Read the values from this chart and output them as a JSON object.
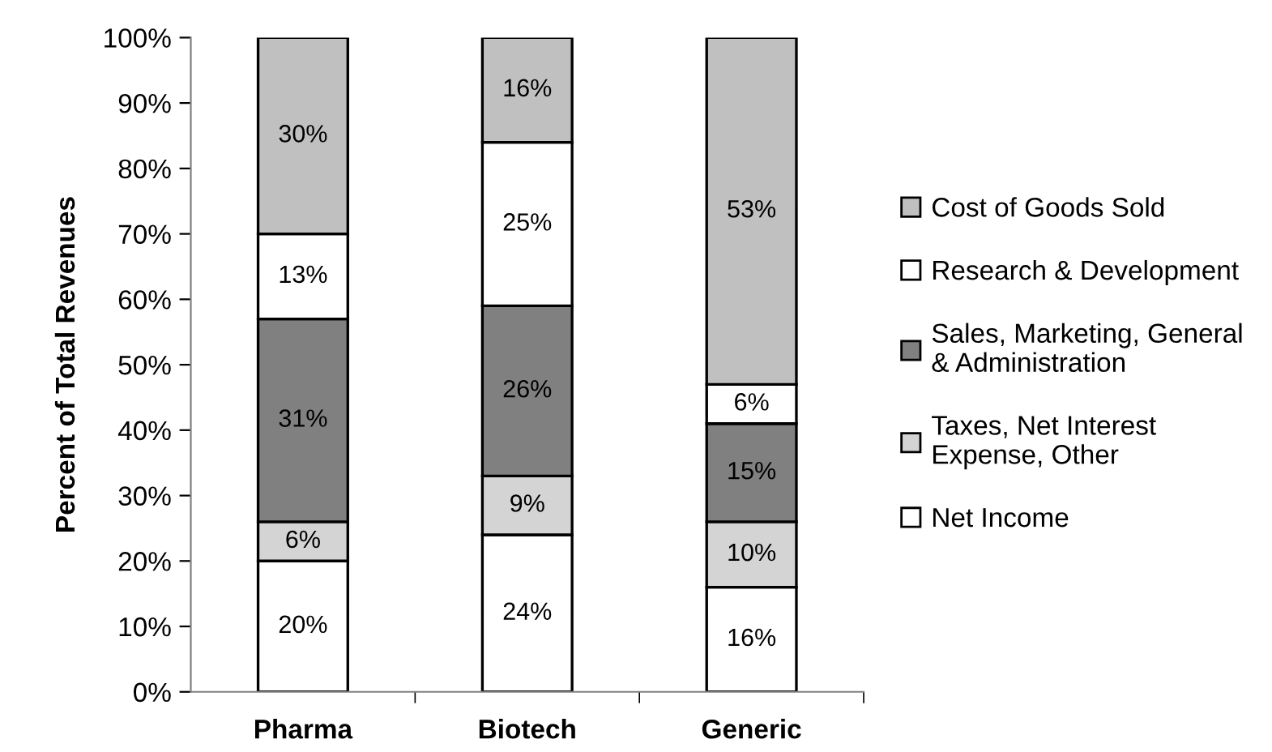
{
  "chart_data": {
    "type": "bar",
    "stacked": true,
    "ylabel": "Percent of Total Revenues",
    "categories": [
      "Pharma",
      "Biotech",
      "Generic"
    ],
    "series": [
      {
        "name": "Net Income",
        "color": "#ffffff",
        "values": [
          20,
          24,
          16
        ],
        "value_labels": [
          "20%",
          "24%",
          "16%"
        ]
      },
      {
        "name": "Taxes, Net Interest\nExpense, Other",
        "color": "#d4d4d4",
        "values": [
          6,
          9,
          10
        ],
        "value_labels": [
          "6%",
          "9%",
          "10%"
        ]
      },
      {
        "name": "Sales, Marketing, General\n& Administration",
        "color": "#808080",
        "values": [
          31,
          26,
          15
        ],
        "value_labels": [
          "31%",
          "26%",
          "15%"
        ]
      },
      {
        "name": "Research & Development",
        "color": "#ffffff",
        "values": [
          13,
          25,
          6
        ],
        "value_labels": [
          "13%",
          "25%",
          "6%"
        ]
      },
      {
        "name": "Cost of Goods Sold",
        "color": "#c0c0c0",
        "values": [
          30,
          16,
          53
        ],
        "value_labels": [
          "30%",
          "16%",
          "53%"
        ]
      }
    ],
    "ylim": [
      0,
      100
    ],
    "yticks": [
      {
        "value": 0,
        "label": "0%"
      },
      {
        "value": 10,
        "label": "10%"
      },
      {
        "value": 20,
        "label": "20%"
      },
      {
        "value": 30,
        "label": "30%"
      },
      {
        "value": 40,
        "label": "40%"
      },
      {
        "value": 50,
        "label": "50%"
      },
      {
        "value": 60,
        "label": "60%"
      },
      {
        "value": 70,
        "label": "70%"
      },
      {
        "value": 80,
        "label": "80%"
      },
      {
        "value": 90,
        "label": "90%"
      },
      {
        "value": 100,
        "label": "100%"
      }
    ],
    "grid": false,
    "legend": "right"
  }
}
